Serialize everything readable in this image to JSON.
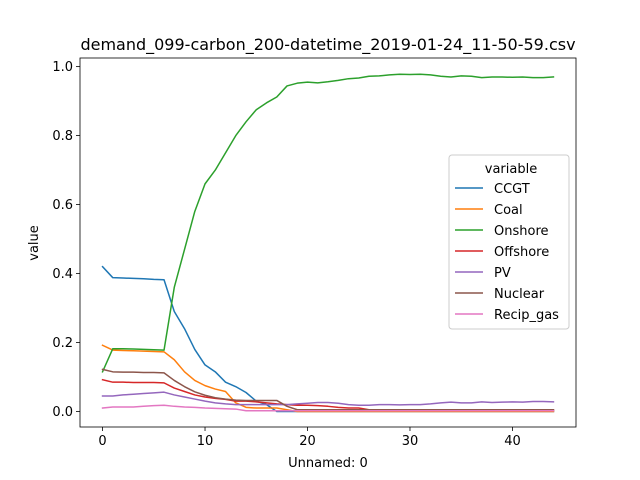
{
  "chart_data": {
    "type": "line",
    "title": "demand_099-carbon_200-datetime_2019-01-24_11-50-59.csv",
    "xlabel": "Unnamed: 0",
    "ylabel": "value",
    "xlim": [
      -2.2,
      46.2
    ],
    "ylim": [
      -0.045,
      1.025
    ],
    "xticks": [
      0,
      10,
      20,
      30,
      40
    ],
    "yticks": [
      0.0,
      0.2,
      0.4,
      0.6,
      0.8,
      1.0
    ],
    "xtick_labels": [
      "0",
      "10",
      "20",
      "30",
      "40"
    ],
    "ytick_labels": [
      "0.0",
      "0.2",
      "0.4",
      "0.6",
      "0.8",
      "1.0"
    ],
    "grid": false,
    "legend": {
      "title": "variable",
      "placement": "center-right"
    },
    "series": [
      {
        "name": "CCGT",
        "color": "#1f77b4",
        "x": [
          0,
          1,
          2,
          3,
          4,
          5,
          6,
          7,
          8,
          9,
          10,
          11,
          12,
          13,
          14,
          15,
          16,
          17,
          18,
          19,
          20,
          21,
          22,
          23,
          24,
          25,
          26,
          27,
          28,
          29,
          30,
          31,
          32,
          33,
          34,
          35,
          36,
          37,
          38,
          39,
          40,
          41,
          42,
          43,
          44
        ],
        "y": [
          0.42,
          0.388,
          0.387,
          0.386,
          0.385,
          0.383,
          0.382,
          0.29,
          0.24,
          0.18,
          0.135,
          0.115,
          0.085,
          0.072,
          0.055,
          0.03,
          0.02,
          0.0,
          0,
          0,
          0,
          0,
          0,
          0,
          0,
          0,
          0,
          0,
          0,
          0,
          0,
          0,
          0,
          0,
          0,
          0,
          0,
          0,
          0,
          0,
          0,
          0,
          0,
          0,
          0
        ]
      },
      {
        "name": "Coal",
        "color": "#ff7f0e",
        "x": [
          0,
          1,
          2,
          3,
          4,
          5,
          6,
          7,
          8,
          9,
          10,
          11,
          12,
          13,
          14,
          15,
          16,
          17,
          18,
          19,
          20,
          21,
          22,
          23,
          24,
          25,
          26,
          27,
          28,
          29,
          30,
          31,
          32,
          33,
          34,
          35,
          36,
          37,
          38,
          39,
          40,
          41,
          42,
          43,
          44
        ],
        "y": [
          0.192,
          0.178,
          0.177,
          0.176,
          0.175,
          0.174,
          0.173,
          0.15,
          0.115,
          0.09,
          0.075,
          0.065,
          0.058,
          0.025,
          0.012,
          0.01,
          0.01,
          0.01,
          0.005,
          0,
          0,
          0,
          0,
          0,
          0,
          0,
          0,
          0,
          0,
          0,
          0,
          0,
          0,
          0,
          0,
          0,
          0,
          0,
          0,
          0,
          0,
          0,
          0,
          0,
          0
        ]
      },
      {
        "name": "Onshore",
        "color": "#2ca02c",
        "x": [
          0,
          1,
          2,
          3,
          4,
          5,
          6,
          7,
          8,
          9,
          10,
          11,
          12,
          13,
          14,
          15,
          16,
          17,
          18,
          19,
          20,
          21,
          22,
          23,
          24,
          25,
          26,
          27,
          28,
          29,
          30,
          31,
          32,
          33,
          34,
          35,
          36,
          37,
          38,
          39,
          40,
          41,
          42,
          43,
          44
        ],
        "y": [
          0.115,
          0.182,
          0.182,
          0.181,
          0.18,
          0.179,
          0.178,
          0.36,
          0.47,
          0.58,
          0.66,
          0.7,
          0.75,
          0.8,
          0.84,
          0.875,
          0.895,
          0.912,
          0.944,
          0.952,
          0.955,
          0.953,
          0.956,
          0.96,
          0.965,
          0.967,
          0.972,
          0.973,
          0.976,
          0.978,
          0.977,
          0.978,
          0.976,
          0.972,
          0.97,
          0.973,
          0.972,
          0.968,
          0.97,
          0.97,
          0.969,
          0.97,
          0.968,
          0.968,
          0.97
        ]
      },
      {
        "name": "Offshore",
        "color": "#d62728",
        "x": [
          0,
          1,
          2,
          3,
          4,
          5,
          6,
          7,
          8,
          9,
          10,
          11,
          12,
          13,
          14,
          15,
          16,
          17,
          18,
          19,
          20,
          21,
          22,
          23,
          24,
          25,
          26,
          27,
          28,
          29,
          30,
          31,
          32,
          33,
          34,
          35,
          36,
          37,
          38,
          39,
          40,
          41,
          42,
          43,
          44
        ],
        "y": [
          0.092,
          0.085,
          0.085,
          0.084,
          0.084,
          0.084,
          0.083,
          0.068,
          0.058,
          0.048,
          0.042,
          0.038,
          0.035,
          0.03,
          0.03,
          0.028,
          0.025,
          0.022,
          0.02,
          0.018,
          0.018,
          0.017,
          0.015,
          0.012,
          0.01,
          0.01,
          0.005,
          0.005,
          0.005,
          0.005,
          0.005,
          0.005,
          0.005,
          0.005,
          0.004,
          0.004,
          0.004,
          0.004,
          0.004,
          0.004,
          0.004,
          0.004,
          0.004,
          0.004,
          0.004
        ]
      },
      {
        "name": "PV",
        "color": "#9467bd",
        "x": [
          0,
          1,
          2,
          3,
          4,
          5,
          6,
          7,
          8,
          9,
          10,
          11,
          12,
          13,
          14,
          15,
          16,
          17,
          18,
          19,
          20,
          21,
          22,
          23,
          24,
          25,
          26,
          27,
          28,
          29,
          30,
          31,
          32,
          33,
          34,
          35,
          36,
          37,
          38,
          39,
          40,
          41,
          42,
          43,
          44
        ],
        "y": [
          0.045,
          0.045,
          0.048,
          0.05,
          0.052,
          0.054,
          0.056,
          0.048,
          0.042,
          0.036,
          0.03,
          0.025,
          0.022,
          0.02,
          0.02,
          0.02,
          0.02,
          0.02,
          0.02,
          0.022,
          0.024,
          0.026,
          0.026,
          0.024,
          0.02,
          0.018,
          0.018,
          0.02,
          0.02,
          0.019,
          0.02,
          0.02,
          0.022,
          0.025,
          0.027,
          0.025,
          0.025,
          0.028,
          0.026,
          0.027,
          0.028,
          0.027,
          0.029,
          0.029,
          0.028
        ]
      },
      {
        "name": "Nuclear",
        "color": "#8c564b",
        "x": [
          0,
          1,
          2,
          3,
          4,
          5,
          6,
          7,
          8,
          9,
          10,
          11,
          12,
          13,
          14,
          15,
          16,
          17,
          18,
          19,
          20,
          21,
          22,
          23,
          24,
          25,
          26,
          27,
          28,
          29,
          30,
          31,
          32,
          33,
          34,
          35,
          36,
          37,
          38,
          39,
          40,
          41,
          42,
          43,
          44
        ],
        "y": [
          0.122,
          0.115,
          0.114,
          0.114,
          0.113,
          0.113,
          0.112,
          0.09,
          0.072,
          0.057,
          0.047,
          0.04,
          0.036,
          0.033,
          0.032,
          0.032,
          0.032,
          0.032,
          0.015,
          0.005,
          0.005,
          0.005,
          0.005,
          0.005,
          0.005,
          0.005,
          0.005,
          0.005,
          0.005,
          0.005,
          0.005,
          0.005,
          0.005,
          0.005,
          0.005,
          0.005,
          0.005,
          0.005,
          0.005,
          0.005,
          0.005,
          0.005,
          0.005,
          0.005,
          0.005
        ]
      },
      {
        "name": "Recip_gas",
        "color": "#e377c2",
        "x": [
          0,
          1,
          2,
          3,
          4,
          5,
          6,
          7,
          8,
          9,
          10,
          11,
          12,
          13,
          14,
          15,
          16,
          17,
          18,
          19,
          20,
          21,
          22,
          23,
          24,
          25,
          26,
          27,
          28,
          29,
          30,
          31,
          32,
          33,
          34,
          35,
          36,
          37,
          38,
          39,
          40,
          41,
          42,
          43,
          44
        ],
        "y": [
          0.01,
          0.013,
          0.013,
          0.013,
          0.015,
          0.017,
          0.018,
          0.015,
          0.013,
          0.012,
          0.01,
          0.009,
          0.008,
          0.007,
          0.002,
          0.002,
          0.002,
          0.002,
          0.002,
          0.002,
          0.002,
          0.002,
          0.002,
          0.002,
          0.002,
          0.002,
          0.002,
          0.002,
          0.002,
          0.002,
          0.002,
          0.002,
          0.002,
          0.002,
          0.002,
          0.002,
          0.002,
          0.002,
          0.002,
          0.002,
          0.002,
          0.002,
          0.002,
          0.002,
          0.002
        ]
      }
    ]
  }
}
